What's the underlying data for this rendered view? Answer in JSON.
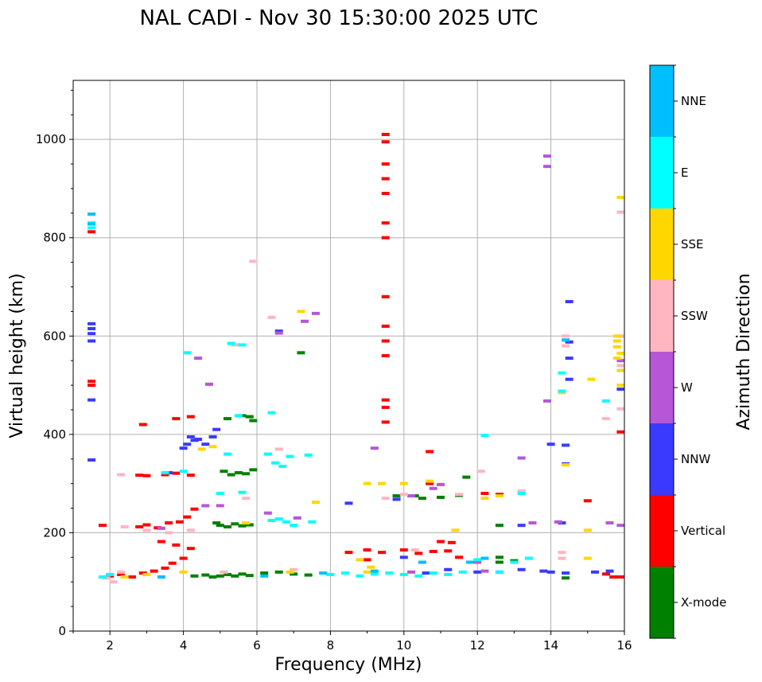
{
  "chart_data": {
    "type": "scatter",
    "title": "NAL CADI - Nov 30 15:30:00 2025 UTC",
    "xlabel": "Frequency (MHz)",
    "ylabel": "Virtual height (km)",
    "xlim": [
      1,
      16
    ],
    "ylim": [
      0,
      1120
    ],
    "xticks": [
      2,
      4,
      6,
      8,
      10,
      12,
      14,
      16
    ],
    "yticks": [
      0,
      200,
      400,
      600,
      800,
      1000
    ],
    "grid": true,
    "colorbar": {
      "label": "Azimuth Direction",
      "categories": [
        "X-mode",
        "Vertical",
        "NNW",
        "W",
        "SSW",
        "SSE",
        "E",
        "NNE"
      ],
      "colors": [
        "#008000",
        "#ff0000",
        "#3a3aff",
        "#b557d6",
        "#ffb6c1",
        "#ffd700",
        "#00ffff",
        "#00bfff"
      ]
    },
    "series": [
      {
        "name": "X-mode",
        "points": [
          [
            5.0,
            112
          ],
          [
            5.2,
            115
          ],
          [
            5.4,
            112
          ],
          [
            5.6,
            116
          ],
          [
            4.8,
            110
          ],
          [
            5.8,
            113
          ],
          [
            6.2,
            118
          ],
          [
            6.6,
            120
          ],
          [
            7.0,
            116
          ],
          [
            7.4,
            114
          ],
          [
            5.0,
            215
          ],
          [
            5.2,
            212
          ],
          [
            5.4,
            218
          ],
          [
            5.6,
            214
          ],
          [
            4.9,
            220
          ],
          [
            5.8,
            216
          ],
          [
            5.3,
            318
          ],
          [
            5.5,
            322
          ],
          [
            5.1,
            325
          ],
          [
            5.7,
            320
          ],
          [
            5.9,
            328
          ],
          [
            5.2,
            432
          ],
          [
            5.6,
            438
          ],
          [
            5.9,
            428
          ],
          [
            7.2,
            566
          ],
          [
            5.8,
            436
          ],
          [
            10.3,
            275
          ],
          [
            10.5,
            270
          ],
          [
            11.0,
            272
          ],
          [
            11.5,
            276
          ],
          [
            11.7,
            313
          ],
          [
            12.6,
            150
          ],
          [
            12.6,
            140
          ],
          [
            13.0,
            143
          ],
          [
            12.6,
            215
          ],
          [
            14.4,
            108
          ],
          [
            4.3,
            112
          ],
          [
            4.6,
            114
          ],
          [
            9.8,
            275
          ]
        ]
      },
      {
        "name": "Vertical",
        "points": [
          [
            1.5,
            812
          ],
          [
            1.5,
            508
          ],
          [
            1.5,
            500
          ],
          [
            1.8,
            215
          ],
          [
            2.0,
            112
          ],
          [
            2.3,
            115
          ],
          [
            2.6,
            110
          ],
          [
            2.9,
            118
          ],
          [
            3.2,
            122
          ],
          [
            3.5,
            128
          ],
          [
            3.7,
            138
          ],
          [
            4.0,
            148
          ],
          [
            3.4,
            182
          ],
          [
            3.8,
            175
          ],
          [
            4.2,
            168
          ],
          [
            2.8,
            212
          ],
          [
            3.0,
            216
          ],
          [
            3.3,
            210
          ],
          [
            3.6,
            220
          ],
          [
            3.9,
            222
          ],
          [
            4.1,
            232
          ],
          [
            4.3,
            248
          ],
          [
            2.8,
            317
          ],
          [
            3.0,
            316
          ],
          [
            3.5,
            318
          ],
          [
            3.8,
            321
          ],
          [
            4.2,
            317
          ],
          [
            2.9,
            420
          ],
          [
            3.8,
            432
          ],
          [
            4.2,
            436
          ],
          [
            9.5,
            1010
          ],
          [
            9.5,
            995
          ],
          [
            9.5,
            950
          ],
          [
            9.5,
            920
          ],
          [
            9.5,
            890
          ],
          [
            9.5,
            830
          ],
          [
            9.5,
            800
          ],
          [
            9.5,
            680
          ],
          [
            9.5,
            620
          ],
          [
            9.5,
            590
          ],
          [
            9.5,
            560
          ],
          [
            9.5,
            470
          ],
          [
            9.5,
            455
          ],
          [
            9.5,
            425
          ],
          [
            9.0,
            165
          ],
          [
            9.4,
            160
          ],
          [
            10.0,
            165
          ],
          [
            10.4,
            158
          ],
          [
            10.8,
            162
          ],
          [
            11.2,
            163
          ],
          [
            11.5,
            150
          ],
          [
            10.7,
            365
          ],
          [
            10.7,
            300
          ],
          [
            12.2,
            280
          ],
          [
            12.6,
            278
          ],
          [
            15.0,
            265
          ],
          [
            15.5,
            116
          ],
          [
            15.7,
            110
          ],
          [
            15.9,
            110
          ],
          [
            15.9,
            405
          ],
          [
            8.5,
            160
          ],
          [
            11.0,
            182
          ],
          [
            11.3,
            180
          ],
          [
            9.0,
            145
          ]
        ]
      },
      {
        "name": "NNW",
        "points": [
          [
            1.5,
            625
          ],
          [
            1.5,
            615
          ],
          [
            1.5,
            605
          ],
          [
            1.5,
            590
          ],
          [
            1.5,
            470
          ],
          [
            1.5,
            348
          ],
          [
            4.2,
            395
          ],
          [
            4.3,
            388
          ],
          [
            4.1,
            380
          ],
          [
            4.0,
            372
          ],
          [
            4.4,
            390
          ],
          [
            4.6,
            380
          ],
          [
            4.8,
            395
          ],
          [
            4.9,
            410
          ],
          [
            3.6,
            322
          ],
          [
            8.5,
            260
          ],
          [
            9.8,
            268
          ],
          [
            10.0,
            150
          ],
          [
            10.6,
            118
          ],
          [
            11.2,
            125
          ],
          [
            12.0,
            120
          ],
          [
            12.6,
            120
          ],
          [
            13.2,
            125
          ],
          [
            13.2,
            215
          ],
          [
            13.8,
            122
          ],
          [
            14.0,
            120
          ],
          [
            14.4,
            118
          ],
          [
            14.3,
            220
          ],
          [
            14.0,
            380
          ],
          [
            14.4,
            378
          ],
          [
            14.4,
            340
          ],
          [
            14.5,
            670
          ],
          [
            14.5,
            588
          ],
          [
            14.5,
            555
          ],
          [
            14.5,
            512
          ],
          [
            15.2,
            120
          ],
          [
            15.6,
            122
          ],
          [
            15.9,
            492
          ],
          [
            6.6,
            610
          ]
        ]
      },
      {
        "name": "W",
        "points": [
          [
            13.9,
            966
          ],
          [
            13.9,
            945
          ],
          [
            13.9,
            468
          ],
          [
            15.9,
            550
          ],
          [
            15.9,
            215
          ],
          [
            14.2,
            222
          ],
          [
            13.5,
            220
          ],
          [
            13.2,
            352
          ],
          [
            9.2,
            372
          ],
          [
            10.2,
            275
          ],
          [
            11.0,
            298
          ],
          [
            6.6,
            606
          ],
          [
            7.6,
            646
          ],
          [
            7.3,
            630
          ],
          [
            4.7,
            502
          ],
          [
            4.4,
            555
          ],
          [
            4.6,
            255
          ],
          [
            5.0,
            255
          ],
          [
            3.4,
            209
          ],
          [
            6.3,
            240
          ],
          [
            7.1,
            230
          ],
          [
            10.2,
            120
          ],
          [
            10.8,
            290
          ],
          [
            12.0,
            140
          ],
          [
            12.2,
            122
          ],
          [
            15.6,
            220
          ]
        ]
      },
      {
        "name": "SSW",
        "points": [
          [
            5.9,
            752
          ],
          [
            6.4,
            638
          ],
          [
            5.4,
            582
          ],
          [
            2.3,
            318
          ],
          [
            2.4,
            212
          ],
          [
            2.3,
            120
          ],
          [
            3.0,
            205
          ],
          [
            3.6,
            200
          ],
          [
            4.2,
            205
          ],
          [
            5.7,
            270
          ],
          [
            6.6,
            370
          ],
          [
            9.5,
            270
          ],
          [
            10.3,
            165
          ],
          [
            10.0,
            278
          ],
          [
            11.5,
            278
          ],
          [
            13.2,
            285
          ],
          [
            14.3,
            160
          ],
          [
            14.3,
            148
          ],
          [
            14.4,
            600
          ],
          [
            14.4,
            580
          ],
          [
            15.5,
            432
          ],
          [
            15.9,
            540
          ],
          [
            15.9,
            600
          ],
          [
            15.9,
            452
          ],
          [
            15.9,
            852
          ],
          [
            12.1,
            325
          ],
          [
            1.9,
            108
          ],
          [
            2.1,
            100
          ],
          [
            5.1,
            120
          ],
          [
            7.0,
            125
          ]
        ]
      },
      {
        "name": "SSE",
        "points": [
          [
            15.9,
            882
          ],
          [
            15.8,
            600
          ],
          [
            15.8,
            590
          ],
          [
            15.8,
            578
          ],
          [
            15.9,
            565
          ],
          [
            15.8,
            555
          ],
          [
            15.9,
            530
          ],
          [
            15.9,
            500
          ],
          [
            15.1,
            512
          ],
          [
            14.4,
            338
          ],
          [
            15.0,
            205
          ],
          [
            15.0,
            148
          ],
          [
            9.0,
            300
          ],
          [
            9.4,
            300
          ],
          [
            10.0,
            300
          ],
          [
            10.7,
            305
          ],
          [
            11.4,
            205
          ],
          [
            12.6,
            275
          ],
          [
            12.2,
            270
          ],
          [
            7.2,
            650
          ],
          [
            4.5,
            370
          ],
          [
            4.8,
            375
          ],
          [
            2.4,
            110
          ],
          [
            3.0,
            115
          ],
          [
            4.0,
            120
          ],
          [
            6.9,
            120
          ],
          [
            7.6,
            262
          ],
          [
            9.0,
            120
          ],
          [
            9.1,
            130
          ],
          [
            14.3,
            485
          ],
          [
            5.7,
            220
          ],
          [
            8.8,
            145
          ]
        ]
      },
      {
        "name": "E",
        "points": [
          [
            1.5,
            830
          ],
          [
            1.5,
            820
          ],
          [
            4.1,
            566
          ],
          [
            5.3,
            585
          ],
          [
            5.6,
            582
          ],
          [
            6.4,
            444
          ],
          [
            5.5,
            438
          ],
          [
            6.3,
            360
          ],
          [
            6.5,
            342
          ],
          [
            6.7,
            335
          ],
          [
            6.9,
            355
          ],
          [
            7.4,
            358
          ],
          [
            6.4,
            225
          ],
          [
            6.6,
            228
          ],
          [
            6.8,
            222
          ],
          [
            7.0,
            215
          ],
          [
            7.5,
            222
          ],
          [
            5.0,
            280
          ],
          [
            5.6,
            282
          ],
          [
            8.0,
            115
          ],
          [
            8.4,
            118
          ],
          [
            8.8,
            112
          ],
          [
            9.2,
            116
          ],
          [
            9.6,
            118
          ],
          [
            10.0,
            115
          ],
          [
            10.4,
            112
          ],
          [
            10.8,
            118
          ],
          [
            11.2,
            115
          ],
          [
            11.6,
            120
          ],
          [
            12.0,
            145
          ],
          [
            12.6,
            120
          ],
          [
            13.0,
            140
          ],
          [
            13.4,
            148
          ],
          [
            13.2,
            280
          ],
          [
            14.3,
            525
          ],
          [
            14.3,
            488
          ],
          [
            15.5,
            468
          ],
          [
            12.2,
            398
          ],
          [
            5.2,
            360
          ],
          [
            4.0,
            325
          ],
          [
            3.5,
            322
          ],
          [
            2.0,
            115
          ],
          [
            1.8,
            110
          ]
        ]
      },
      {
        "name": "NNE",
        "points": [
          [
            1.5,
            848
          ],
          [
            1.5,
            828
          ],
          [
            14.4,
            592
          ],
          [
            12.2,
            148
          ],
          [
            11.8,
            140
          ],
          [
            9.2,
            122
          ],
          [
            7.8,
            118
          ],
          [
            6.2,
            112
          ],
          [
            3.4,
            110
          ],
          [
            10.5,
            140
          ]
        ]
      }
    ]
  }
}
